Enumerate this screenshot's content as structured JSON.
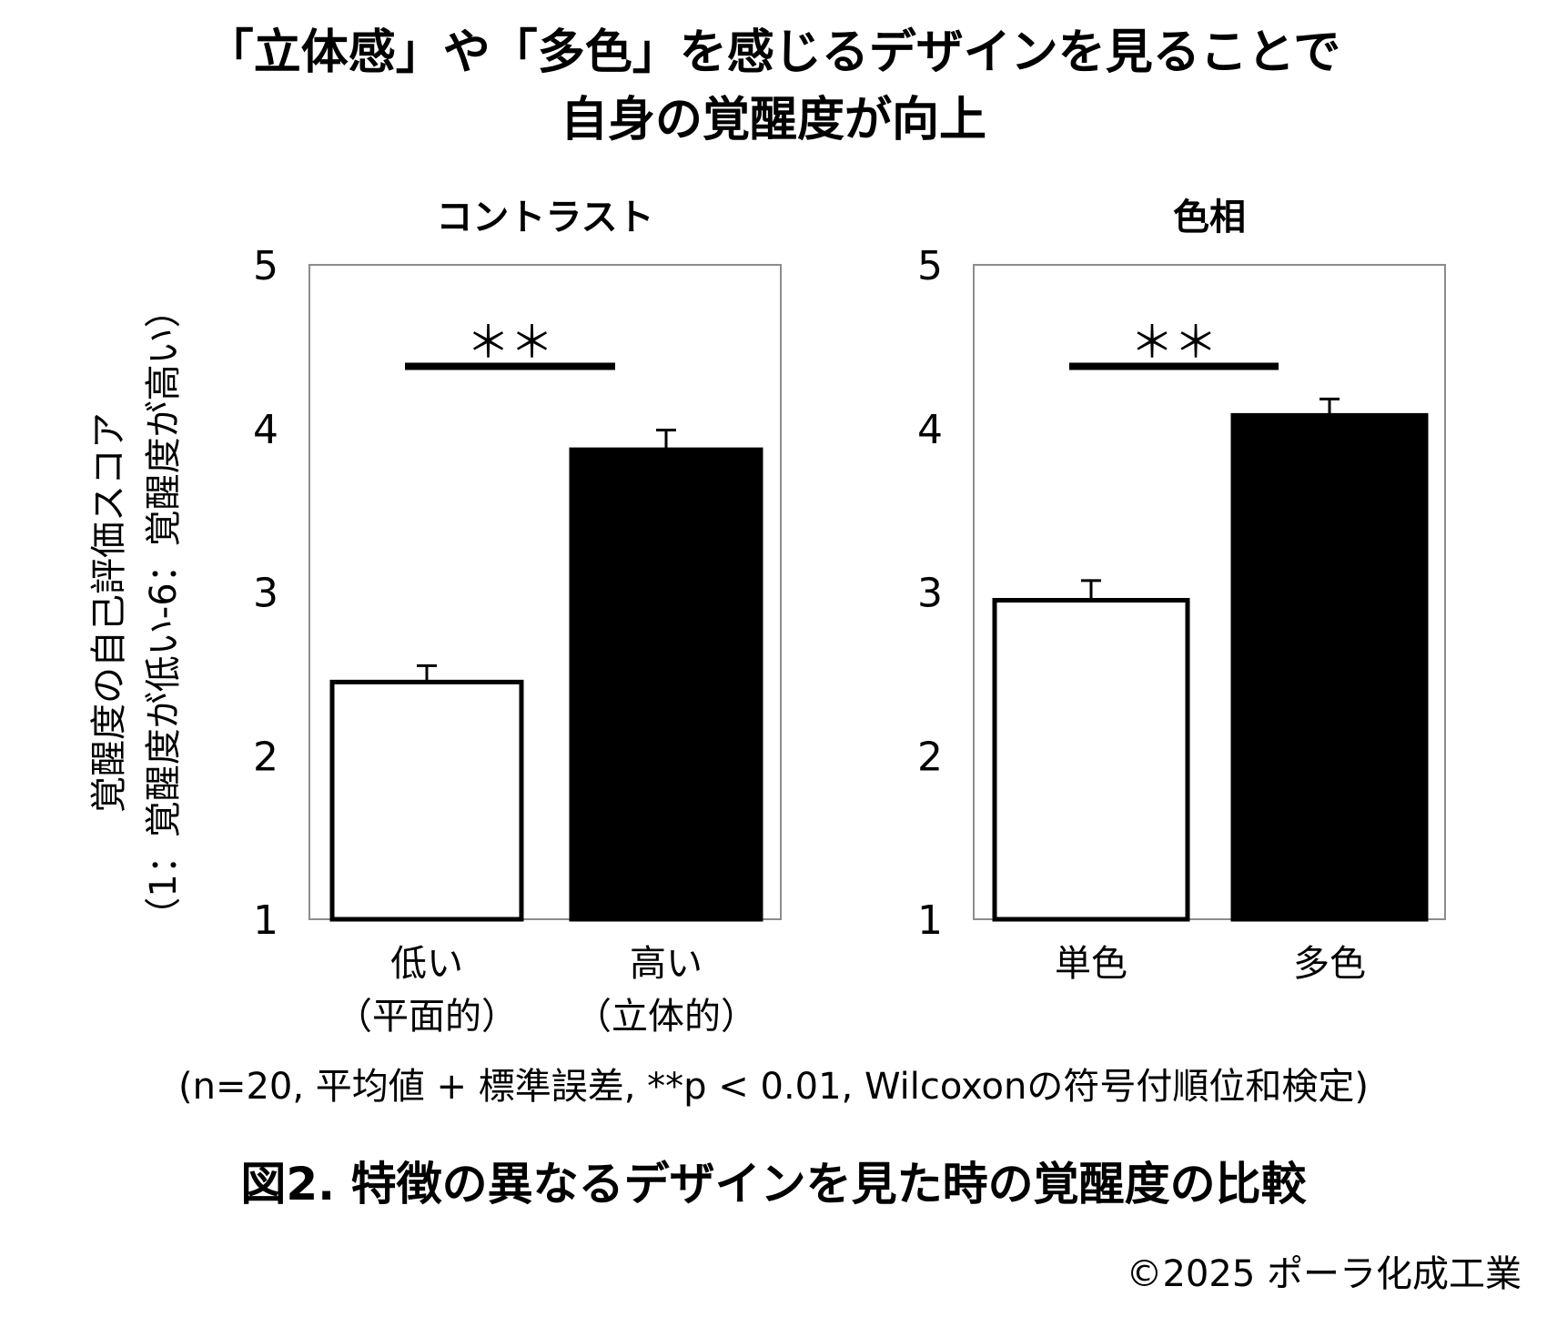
{
  "title_lines": [
    "「立体感」や「多色」を感じるデザインを見ることで",
    "自身の覚醒度が向上"
  ],
  "y_axis_label_lines": [
    "覚醒度の自己評価スコア",
    "（1：覚醒度が低い-6：覚醒度が高い）"
  ],
  "note": "(n=20, 平均値 + 標準誤差, **p < 0.01, Wilcoxonの符号付順位和検定)",
  "caption": "図2. 特徴の異なるデザインを見た時の覚醒度の比較",
  "copyright": "©2025  ポーラ化成工業",
  "colors": {
    "bar_low": "#ffffff",
    "bar_high": "#000000",
    "frame": "#8c8c8c"
  },
  "chart_data": [
    {
      "type": "bar",
      "title": "コントラスト",
      "categories": [
        [
          "低い",
          "（平面的）"
        ],
        [
          "高い",
          "（立体的）"
        ]
      ],
      "values": [
        2.45,
        3.87
      ],
      "errors": [
        0.1,
        0.12
      ],
      "ylim": [
        1,
        5
      ],
      "yticks": [
        1,
        2,
        3,
        4,
        5
      ],
      "significance": "＊＊",
      "significance_level": 4.38,
      "grid": false
    },
    {
      "type": "bar",
      "title": "色相",
      "categories": [
        [
          "単色"
        ],
        [
          "多色"
        ]
      ],
      "values": [
        2.95,
        4.08
      ],
      "errors": [
        0.12,
        0.1
      ],
      "ylim": [
        1,
        5
      ],
      "yticks": [
        1,
        2,
        3,
        4,
        5
      ],
      "significance": "＊＊",
      "significance_level": 4.38,
      "grid": false
    }
  ]
}
